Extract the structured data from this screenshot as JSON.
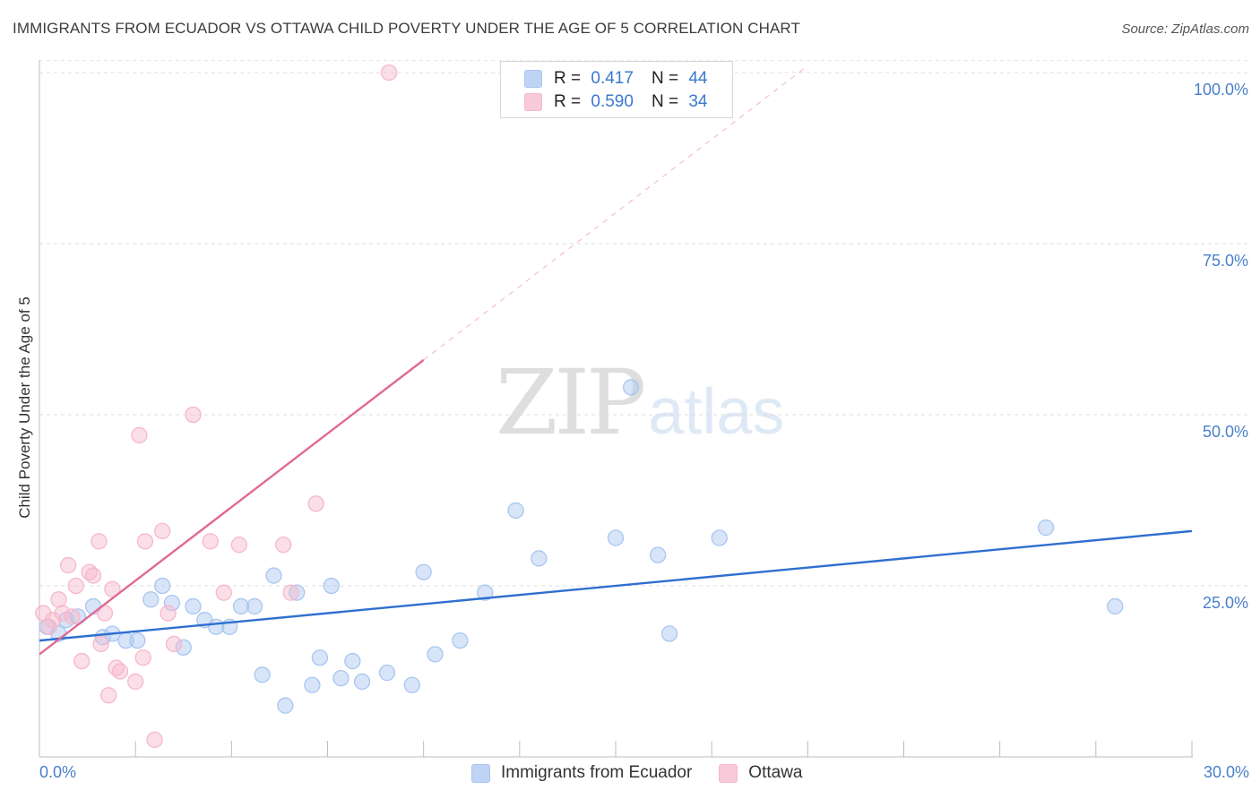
{
  "header": {
    "title": "IMMIGRANTS FROM ECUADOR VS OTTAWA CHILD POVERTY UNDER THE AGE OF 5 CORRELATION CHART",
    "source": "Source: ZipAtlas.com"
  },
  "watermark": {
    "zip": "ZIP",
    "atlas": "atlas"
  },
  "legend": {
    "rows": [
      {
        "r_label": "R =",
        "r_value": "0.417",
        "n_label": "N =",
        "n_value": "44",
        "color": "#a9c6f0"
      },
      {
        "r_label": "R =",
        "r_value": "0.590",
        "n_label": "N =",
        "n_value": "34",
        "color": "#f6b7cb"
      }
    ]
  },
  "bottom_legend": {
    "items": [
      {
        "label": "Immigrants from Ecuador",
        "color": "#a9c6f0"
      },
      {
        "label": "Ottawa",
        "color": "#f6b7cb"
      }
    ]
  },
  "chart_data": {
    "type": "scatter",
    "title": "IMMIGRANTS FROM ECUADOR VS OTTAWA CHILD POVERTY UNDER THE AGE OF 5 CORRELATION CHART",
    "xlabel": "",
    "ylabel": "Child Poverty Under the Age of 5",
    "xlim": [
      0,
      30
    ],
    "ylim": [
      0,
      102
    ],
    "x_tick_labels": [
      "0.0%",
      "30.0%"
    ],
    "y_ticks": [
      {
        "value": 25,
        "label": "25.0%"
      },
      {
        "value": 50,
        "label": "50.0%"
      },
      {
        "value": 75,
        "label": "75.0%"
      },
      {
        "value": 100,
        "label": "100.0%"
      }
    ],
    "grid": true,
    "series": [
      {
        "name": "Immigrants from Ecuador",
        "color": "#a9c6f0",
        "line_color": "#2f6fd0",
        "trend": {
          "x0": 0,
          "y0": 17.0,
          "x1": 30,
          "y1": 33.0,
          "dashed_x1": 30
        },
        "points": [
          [
            0.2,
            19.0
          ],
          [
            0.5,
            18.0
          ],
          [
            0.7,
            20.0
          ],
          [
            1.0,
            20.5
          ],
          [
            1.4,
            22.0
          ],
          [
            1.65,
            17.5
          ],
          [
            1.9,
            18.0
          ],
          [
            2.25,
            17.0
          ],
          [
            2.55,
            17.0
          ],
          [
            2.9,
            23.0
          ],
          [
            3.2,
            25.0
          ],
          [
            3.45,
            22.5
          ],
          [
            3.75,
            16.0
          ],
          [
            4.0,
            22.0
          ],
          [
            4.3,
            20.0
          ],
          [
            4.6,
            19.0
          ],
          [
            4.95,
            19.0
          ],
          [
            5.25,
            22.0
          ],
          [
            5.6,
            22.0
          ],
          [
            5.8,
            12.0
          ],
          [
            6.1,
            26.5
          ],
          [
            6.4,
            7.5
          ],
          [
            6.7,
            24.0
          ],
          [
            7.1,
            10.5
          ],
          [
            7.3,
            14.5
          ],
          [
            7.6,
            25.0
          ],
          [
            7.85,
            11.5
          ],
          [
            8.15,
            14.0
          ],
          [
            8.4,
            11.0
          ],
          [
            9.05,
            12.3
          ],
          [
            9.7,
            10.5
          ],
          [
            10.0,
            27.0
          ],
          [
            10.3,
            15.0
          ],
          [
            10.95,
            17.0
          ],
          [
            11.6,
            24.0
          ],
          [
            12.4,
            36.0
          ],
          [
            13.0,
            29.0
          ],
          [
            15.0,
            32.0
          ],
          [
            15.4,
            54.0
          ],
          [
            16.1,
            29.5
          ],
          [
            16.4,
            18.0
          ],
          [
            17.7,
            32.0
          ],
          [
            26.2,
            33.5
          ],
          [
            28.0,
            22.0
          ]
        ]
      },
      {
        "name": "Ottawa",
        "color": "#f6b7cb",
        "line_color": "#e06a93",
        "trend": {
          "x0": 0,
          "y0": 15.0,
          "x1": 10.0,
          "y1": 58.0,
          "dashed_x1": 19.9
        },
        "points": [
          [
            0.1,
            21.0
          ],
          [
            0.25,
            19.0
          ],
          [
            0.35,
            20.0
          ],
          [
            0.5,
            23.0
          ],
          [
            0.6,
            21.0
          ],
          [
            0.75,
            28.0
          ],
          [
            0.85,
            20.5
          ],
          [
            0.95,
            25.0
          ],
          [
            1.1,
            14.0
          ],
          [
            1.3,
            27.0
          ],
          [
            1.4,
            26.5
          ],
          [
            1.55,
            31.5
          ],
          [
            1.6,
            16.5
          ],
          [
            1.7,
            21.0
          ],
          [
            1.8,
            9.0
          ],
          [
            1.9,
            24.5
          ],
          [
            2.0,
            13.0
          ],
          [
            2.1,
            12.5
          ],
          [
            2.5,
            11.0
          ],
          [
            2.6,
            47.0
          ],
          [
            2.7,
            14.5
          ],
          [
            2.75,
            31.5
          ],
          [
            3.0,
            2.5
          ],
          [
            3.2,
            33.0
          ],
          [
            3.35,
            21.0
          ],
          [
            3.5,
            16.5
          ],
          [
            4.0,
            50.0
          ],
          [
            4.45,
            31.5
          ],
          [
            4.8,
            24.0
          ],
          [
            5.2,
            31.0
          ],
          [
            6.35,
            31.0
          ],
          [
            6.55,
            24.0
          ],
          [
            7.2,
            37.0
          ],
          [
            9.1,
            100.0
          ]
        ]
      }
    ]
  }
}
